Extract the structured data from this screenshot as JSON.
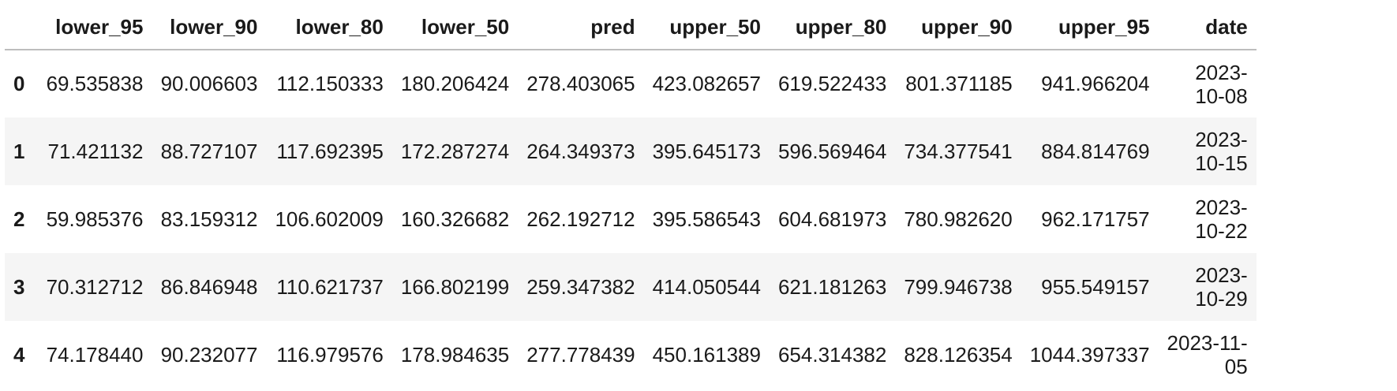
{
  "table": {
    "index_header": "",
    "columns": [
      "lower_95",
      "lower_90",
      "lower_80",
      "lower_50",
      "pred",
      "upper_50",
      "upper_80",
      "upper_90",
      "upper_95",
      "date"
    ],
    "rows": [
      {
        "index": "0",
        "cells": [
          "69.535838",
          "90.006603",
          "112.150333",
          "180.206424",
          "278.403065",
          "423.082657",
          "619.522433",
          "801.371185",
          "941.966204"
        ],
        "date_line1": "2023-",
        "date_line2": "10-08"
      },
      {
        "index": "1",
        "cells": [
          "71.421132",
          "88.727107",
          "117.692395",
          "172.287274",
          "264.349373",
          "395.645173",
          "596.569464",
          "734.377541",
          "884.814769"
        ],
        "date_line1": "2023-",
        "date_line2": "10-15"
      },
      {
        "index": "2",
        "cells": [
          "59.985376",
          "83.159312",
          "106.602009",
          "160.326682",
          "262.192712",
          "395.586543",
          "604.681973",
          "780.982620",
          "962.171757"
        ],
        "date_line1": "2023-",
        "date_line2": "10-22"
      },
      {
        "index": "3",
        "cells": [
          "70.312712",
          "86.846948",
          "110.621737",
          "166.802199",
          "259.347382",
          "414.050544",
          "621.181263",
          "799.946738",
          "955.549157"
        ],
        "date_line1": "2023-",
        "date_line2": "10-29"
      },
      {
        "index": "4",
        "cells": [
          "74.178440",
          "90.232077",
          "116.979576",
          "178.984635",
          "277.778439",
          "450.161389",
          "654.314382",
          "828.126354",
          "1044.397337"
        ],
        "date_line1": "2023-11-",
        "date_line2": "05"
      }
    ]
  },
  "colors": {
    "header_border": "#bdbdbd",
    "stripe": "#f5f5f5",
    "text": "#1a1a1a"
  }
}
